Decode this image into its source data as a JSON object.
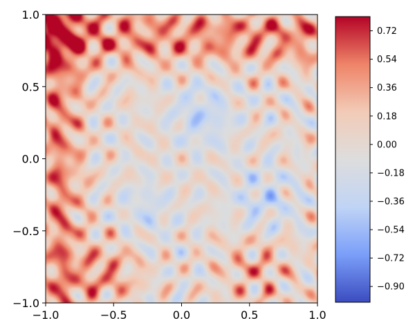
{
  "chart_data": {
    "type": "heatmap",
    "title": "",
    "xlabel": "",
    "ylabel": "",
    "xlim": [
      -1.0,
      1.0
    ],
    "ylim": [
      -1.0,
      1.0
    ],
    "x_ticks": [
      {
        "value": -1.0,
        "label": "−1.0"
      },
      {
        "value": -0.5,
        "label": "−0.5"
      },
      {
        "value": 0.0,
        "label": "0.0"
      },
      {
        "value": 0.5,
        "label": "0.5"
      },
      {
        "value": 1.0,
        "label": "1.0"
      }
    ],
    "y_ticks": [
      {
        "value": -1.0,
        "label": "−1.0"
      },
      {
        "value": -0.5,
        "label": "−0.5"
      },
      {
        "value": 0.0,
        "label": "0.0"
      },
      {
        "value": 0.5,
        "label": "0.5"
      },
      {
        "value": 1.0,
        "label": "1.0"
      }
    ],
    "colormap": "coolwarm",
    "colormap_stops": [
      "#3b4cc0",
      "#7b9ff9",
      "#c0d4f5",
      "#dddddd",
      "#f2cbb7",
      "#ee8468",
      "#b40426"
    ],
    "value_range": [
      -1.0,
      0.81
    ],
    "colorbar_ticks": [
      {
        "value": 0.72,
        "label": "0.72"
      },
      {
        "value": 0.54,
        "label": "0.54"
      },
      {
        "value": 0.36,
        "label": "0.36"
      },
      {
        "value": 0.18,
        "label": "0.18"
      },
      {
        "value": 0.0,
        "label": "0.00"
      },
      {
        "value": -0.18,
        "label": "−0.18"
      },
      {
        "value": -0.36,
        "label": "−0.36"
      },
      {
        "value": -0.54,
        "label": "−0.54"
      },
      {
        "value": -0.72,
        "label": "−0.72"
      },
      {
        "value": -0.9,
        "label": "−0.90"
      }
    ],
    "grid": false,
    "field_description": "interference pattern of high-frequency oscillations with warm (positive) bands near the top edge, left edge and bottom-left corner and cool (negative) regions near the center and lower-right"
  }
}
